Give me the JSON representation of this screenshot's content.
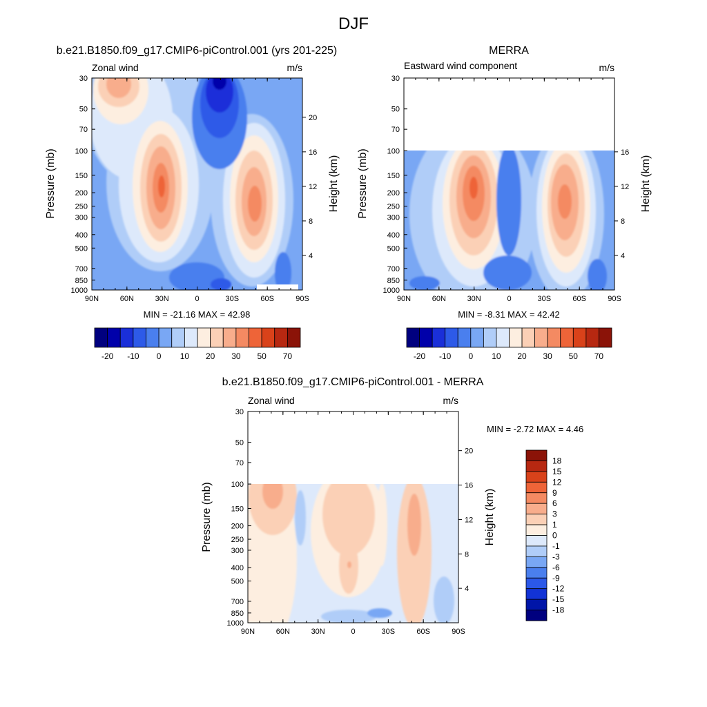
{
  "figure": {
    "title": "DJF"
  },
  "palettes": {
    "field": [
      "#00007f",
      "#0000aa",
      "#1a2fd9",
      "#2d5ae8",
      "#4a7fee",
      "#79a7f4",
      "#b0cdf8",
      "#dde9fb",
      "#fdeee0",
      "#fbd0b6",
      "#f8ad8c",
      "#f48a62",
      "#ee6438",
      "#d9421a",
      "#b72811",
      "#8b1308"
    ],
    "diff": [
      "#00007f",
      "#0015a8",
      "#1233d6",
      "#2b58e8",
      "#4a7fee",
      "#79a7f4",
      "#b0cdf8",
      "#dde9fb",
      "#fdeee0",
      "#fbd0b6",
      "#f8ad8c",
      "#f48a62",
      "#ee6438",
      "#d9421a",
      "#b72811",
      "#8b1308"
    ]
  },
  "panels": {
    "model": {
      "title": "b.e21.B1850.f09_g17.CMIP6-piControl.001 (yrs 201-225)",
      "left_label": "Zonal wind",
      "right_label": "m/s",
      "y_axis_label": "Pressure (mb)",
      "right_axis_label": "Height (km)",
      "stats": "MIN = -21.16  MAX = 42.98",
      "colorbar_labels": [
        "-20",
        "-10",
        "0",
        "10",
        "20",
        "30",
        "50",
        "70"
      ]
    },
    "obs": {
      "title": "MERRA",
      "left_label": "Eastward wind component",
      "right_label": "m/s",
      "y_axis_label": "Pressure (mb)",
      "right_axis_label": "Height (km)",
      "stats": "MIN =  -8.31  MAX =  42.42",
      "colorbar_labels": [
        "-20",
        "-10",
        "0",
        "10",
        "20",
        "30",
        "50",
        "70"
      ]
    },
    "diff": {
      "title": "b.e21.B1850.f09_g17.CMIP6-piControl.001 - MERRA",
      "left_label": "Zonal wind",
      "right_label": "m/s",
      "y_axis_label": "Pressure (mb)",
      "right_axis_label": "Height (km)",
      "stats": "MIN =  -2.72  MAX =   4.46",
      "colorbar_labels": [
        "18",
        "15",
        "12",
        "9",
        "6",
        "3",
        "1",
        "0",
        "-1",
        "-3",
        "-6",
        "-9",
        "-12",
        "-15",
        "-18"
      ]
    }
  },
  "axes": {
    "x_ticks": [
      "90N",
      "60N",
      "30N",
      "0",
      "30S",
      "60S",
      "90S"
    ],
    "pressure_ticks": [
      "30",
      "50",
      "70",
      "100",
      "150",
      "200",
      "250",
      "300",
      "400",
      "500",
      "700",
      "850",
      "1000"
    ],
    "height_ticks_full": [
      "20",
      "16",
      "12",
      "8",
      "4"
    ],
    "height_ticks_obs": [
      "16",
      "12",
      "8",
      "4"
    ]
  },
  "chart_data": [
    {
      "type": "heatmap",
      "title": "b.e21.B1850.f09_g17.CMIP6-piControl.001 (yrs 201-225)",
      "variable": "Zonal wind",
      "units": "m/s",
      "xlabel": "",
      "ylabel": "Pressure (mb)",
      "y2label": "Height (km)",
      "x_range": [
        "90N",
        "90S"
      ],
      "y_range_mb": [
        1000,
        30
      ],
      "min": -21.16,
      "max": 42.98,
      "features": [
        {
          "type": "max",
          "lat": 28,
          "p": 200,
          "value": 40
        },
        {
          "type": "max",
          "lat": -45,
          "p": 220,
          "value": 32
        },
        {
          "type": "max",
          "lat": 62,
          "p": 30,
          "value": 25
        },
        {
          "type": "min",
          "lat": -18,
          "p": 30,
          "value": -21
        }
      ]
    },
    {
      "type": "heatmap",
      "title": "MERRA",
      "variable": "Eastward wind component",
      "units": "m/s",
      "ylabel": "Pressure (mb)",
      "y2label": "Height (km)",
      "x_range": [
        "90N",
        "90S"
      ],
      "y_range_mb": [
        1000,
        100
      ],
      "min": -8.31,
      "max": 42.42,
      "features": [
        {
          "type": "max",
          "lat": 30,
          "p": 200,
          "value": 40
        },
        {
          "type": "max",
          "lat": -47,
          "p": 250,
          "value": 35
        }
      ]
    },
    {
      "type": "heatmap",
      "title": "b.e21.B1850.f09_g17.CMIP6-piControl.001 - MERRA",
      "variable": "Zonal wind",
      "units": "m/s",
      "ylabel": "Pressure (mb)",
      "y2label": "Height (km)",
      "x_range": [
        "90N",
        "90S"
      ],
      "y_range_mb": [
        1000,
        100
      ],
      "min": -2.72,
      "max": 4.46,
      "colorbar_levels": [
        18,
        15,
        12,
        9,
        6,
        3,
        1,
        0,
        -1,
        -3,
        -6,
        -9,
        -12,
        -15,
        -18
      ]
    }
  ]
}
